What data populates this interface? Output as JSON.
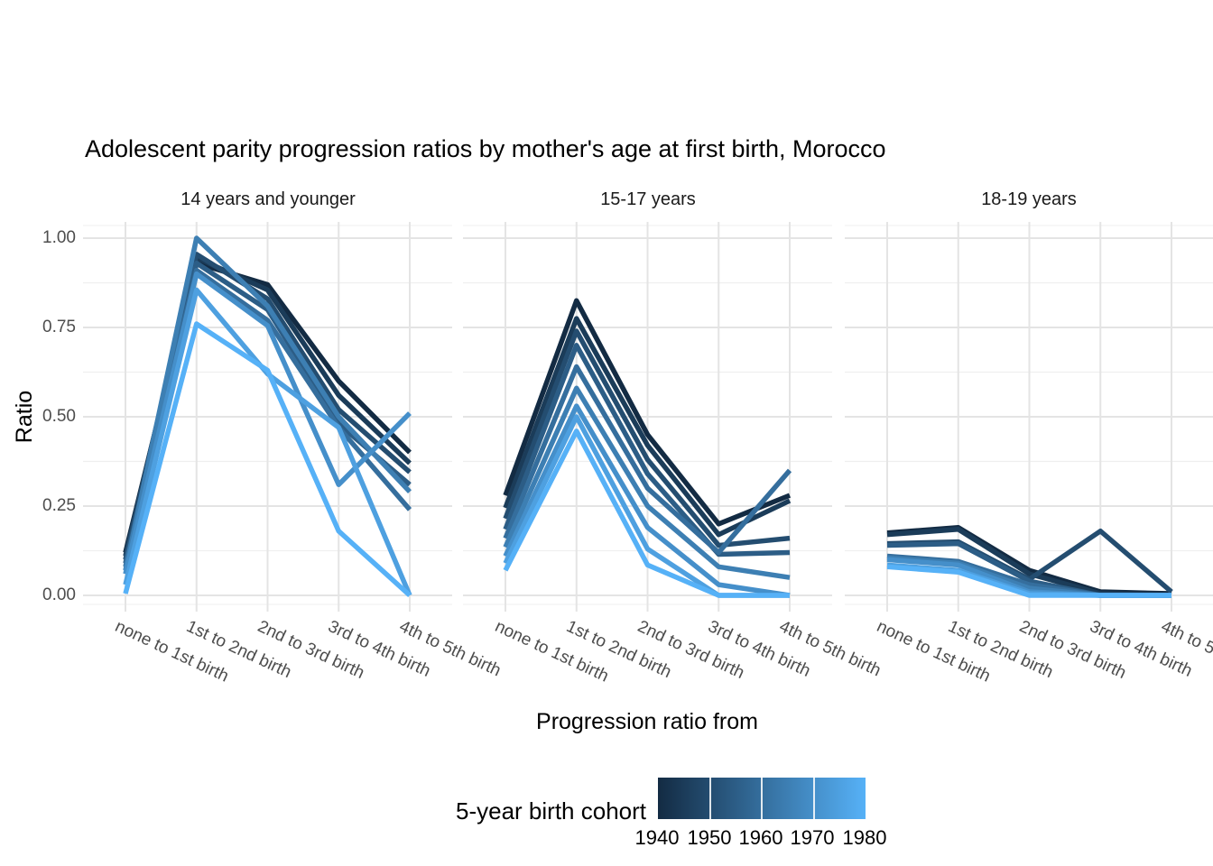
{
  "chart_data": {
    "type": "line",
    "title": "Adolescent parity progression ratios by mother's age at first birth,  Morocco",
    "xlabel": "Progression ratio from",
    "ylabel": "Ratio",
    "ylim": [
      0,
      1
    ],
    "grid": true,
    "y_ticks": {
      "labels": [
        "1.00",
        "0.75",
        "0.50",
        "0.25",
        "0.00"
      ],
      "values": [
        1,
        0.75,
        0.5,
        0.25,
        0
      ]
    },
    "categories": [
      "none to 1st birth",
      "1st to 2nd birth",
      "2nd to 3rd birth",
      "3rd to 4th birth",
      "4th to 5th birth"
    ],
    "legend": {
      "title": "5-year birth cohort",
      "position": "bottom",
      "type": "colorbar",
      "tick_labels": [
        "1940",
        "1950",
        "1960",
        "1970",
        "1980"
      ],
      "gradient_low": "#132B43",
      "gradient_high": "#56B1F7"
    },
    "facets": [
      {
        "label": "14 years and younger",
        "series": [
          {
            "cohort": 1940,
            "color": "#132B43",
            "values": [
              0.12,
              0.93,
              0.87,
              0.6,
              0.4
            ]
          },
          {
            "cohort": 1945,
            "color": "#1B3C59",
            "values": [
              0.11,
              0.945,
              0.855,
              0.56,
              0.37
            ]
          },
          {
            "cohort": 1950,
            "color": "#244D70",
            "values": [
              0.1,
              0.955,
              0.83,
              0.52,
              0.345
            ]
          },
          {
            "cohort": 1955,
            "color": "#2C5D86",
            "values": [
              0.09,
              0.93,
              0.8,
              0.48,
              0.31
            ]
          },
          {
            "cohort": 1960,
            "color": "#356E9D",
            "values": [
              0.08,
              0.91,
              0.77,
              0.47,
              0.24
            ]
          },
          {
            "cohort": 1965,
            "color": "#3D7FB3",
            "values": [
              0.07,
              1.0,
              0.81,
              0.5,
              0.29
            ]
          },
          {
            "cohort": 1970,
            "color": "#458FCA",
            "values": [
              0.06,
              0.9,
              0.755,
              0.31,
              0.51
            ]
          },
          {
            "cohort": 1975,
            "color": "#4EA0E0",
            "values": [
              0.03,
              0.855,
              0.62,
              0.47,
              0.0
            ]
          },
          {
            "cohort": 1980,
            "color": "#56B1F7",
            "values": [
              0.005,
              0.76,
              0.63,
              0.18,
              0.0
            ]
          }
        ]
      },
      {
        "label": "15-17 years",
        "series": [
          {
            "cohort": 1940,
            "color": "#132B43",
            "values": [
              0.28,
              0.825,
              0.45,
              0.2,
              0.28
            ]
          },
          {
            "cohort": 1945,
            "color": "#1B3C59",
            "values": [
              0.245,
              0.775,
              0.42,
              0.17,
              0.265
            ]
          },
          {
            "cohort": 1950,
            "color": "#244D70",
            "values": [
              0.215,
              0.74,
              0.38,
              0.14,
              0.16
            ]
          },
          {
            "cohort": 1955,
            "color": "#2C5D86",
            "values": [
              0.185,
              0.7,
              0.34,
              0.115,
              0.12
            ]
          },
          {
            "cohort": 1960,
            "color": "#356E9D",
            "values": [
              0.16,
              0.64,
              0.3,
              0.12,
              0.35
            ]
          },
          {
            "cohort": 1965,
            "color": "#3D7FB3",
            "values": [
              0.135,
              0.58,
              0.25,
              0.08,
              0.05
            ]
          },
          {
            "cohort": 1970,
            "color": "#458FCA",
            "values": [
              0.11,
              0.53,
              0.19,
              0.03,
              0.0
            ]
          },
          {
            "cohort": 1975,
            "color": "#4EA0E0",
            "values": [
              0.09,
              0.5,
              0.13,
              0.0,
              0.0
            ]
          },
          {
            "cohort": 1980,
            "color": "#56B1F7",
            "values": [
              0.07,
              0.46,
              0.085,
              0.0,
              0.0
            ]
          }
        ]
      },
      {
        "label": "18-19 years",
        "series": [
          {
            "cohort": 1940,
            "color": "#132B43",
            "values": [
              0.175,
              0.19,
              0.07,
              0.01,
              0.005
            ]
          },
          {
            "cohort": 1945,
            "color": "#1B3C59",
            "values": [
              0.17,
              0.185,
              0.06,
              0.005,
              0.0
            ]
          },
          {
            "cohort": 1950,
            "color": "#244D70",
            "values": [
              0.145,
              0.15,
              0.045,
              0.18,
              0.01
            ]
          },
          {
            "cohort": 1955,
            "color": "#2C5D86",
            "values": [
              0.14,
              0.145,
              0.04,
              0.0,
              0.0
            ]
          },
          {
            "cohort": 1960,
            "color": "#356E9D",
            "values": [
              0.11,
              0.095,
              0.03,
              0.0,
              0.0
            ]
          },
          {
            "cohort": 1965,
            "color": "#3D7FB3",
            "values": [
              0.105,
              0.09,
              0.02,
              0.0,
              0.0
            ]
          },
          {
            "cohort": 1970,
            "color": "#458FCA",
            "values": [
              0.1,
              0.085,
              0.01,
              0.0,
              0.0
            ]
          },
          {
            "cohort": 1975,
            "color": "#4EA0E0",
            "values": [
              0.085,
              0.07,
              0.005,
              0.0,
              0.0
            ]
          },
          {
            "cohort": 1980,
            "color": "#56B1F7",
            "values": [
              0.08,
              0.065,
              0.0,
              0.0,
              0.0
            ]
          }
        ]
      }
    ]
  }
}
